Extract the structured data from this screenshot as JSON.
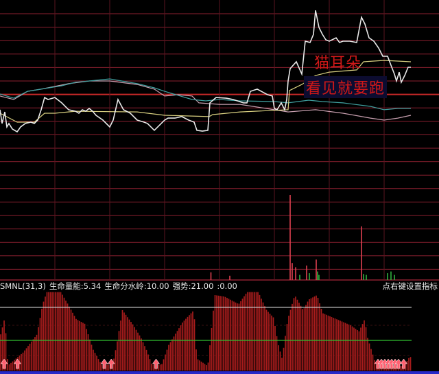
{
  "colors": {
    "background": "#000000",
    "grid": "#8e2030",
    "grid_base": "#c82828",
    "price": "#e8e8e8",
    "average": "#d8d080",
    "line_cyan": "#40a0a0",
    "line_pink": "#c8a0b0",
    "volume_up": "#e04050",
    "volume_down": "#30b040",
    "indicator_bar": "#a81c1c",
    "strong_line": "#d0d0d0",
    "watershed_line": "#30c030",
    "arrow": "#ff6070",
    "bottom_bar": "#2828c8"
  },
  "annotations": {
    "line1": "猫耳朵",
    "line2": "看见就要跑"
  },
  "indicator_header": {
    "name": "SMNL(31,3)",
    "energy": "生命量能:5.34",
    "watershed": "生命分水岭:10.00",
    "strong": "强势:21.00",
    "extra": ":0.00",
    "settings_hint": "点右键设置指标"
  },
  "chart_data": [
    {
      "type": "line",
      "panel": "intraday-price",
      "x_unit": "minute",
      "xlim": [
        0,
        240
      ],
      "y_unit": "percent change",
      "grid": true,
      "series": [
        {
          "role": "price",
          "points": [
            [
              0,
              -1.17
            ],
            [
              1.2,
              -2.19
            ],
            [
              2.8,
              -1.33
            ],
            [
              4,
              -2.45
            ],
            [
              5.2,
              -2.19
            ],
            [
              7.2,
              -2.6
            ],
            [
              10,
              -2.81
            ],
            [
              12,
              -2.45
            ],
            [
              14.8,
              -2.19
            ],
            [
              18,
              -2.09
            ],
            [
              20,
              -2.19
            ],
            [
              22,
              -1.94
            ],
            [
              24,
              -1.17
            ],
            [
              26,
              -0.26
            ],
            [
              28,
              -0.41
            ],
            [
              32,
              -0.26
            ],
            [
              36,
              -0.66
            ],
            [
              40,
              -1.17
            ],
            [
              44,
              -1.28
            ],
            [
              46,
              -1.43
            ],
            [
              48,
              -1.17
            ],
            [
              50,
              -1.28
            ],
            [
              52,
              -1.07
            ],
            [
              54,
              -1.28
            ],
            [
              56,
              -1.58
            ],
            [
              60,
              -1.94
            ],
            [
              64,
              -2.45
            ],
            [
              66,
              -1.94
            ],
            [
              68.8,
              -0.41
            ],
            [
              72,
              -1.17
            ],
            [
              76,
              -1.43
            ],
            [
              80,
              -1.94
            ],
            [
              84,
              -2.09
            ],
            [
              86,
              -2.19
            ],
            [
              90,
              -2.7
            ],
            [
              94,
              -2.19
            ],
            [
              96,
              -1.94
            ],
            [
              98,
              -1.79
            ],
            [
              102,
              -1.79
            ],
            [
              106,
              -1.68
            ],
            [
              110,
              -1.94
            ],
            [
              113.2,
              -2.09
            ],
            [
              114.8,
              -2.7
            ],
            [
              118,
              -2.76
            ],
            [
              121.2,
              -2.7
            ],
            [
              122.4,
              -0.66
            ],
            [
              126,
              -0.26
            ],
            [
              132,
              -0.31
            ],
            [
              136,
              -0.41
            ],
            [
              142,
              -0.66
            ],
            [
              144,
              -0.66
            ],
            [
              146,
              0.2
            ],
            [
              150,
              0.36
            ],
            [
              156,
              -0.05
            ],
            [
              158.8,
              -0.15
            ],
            [
              160,
              -1.07
            ],
            [
              161.6,
              -1.17
            ],
            [
              164,
              -0.66
            ],
            [
              166,
              -1.17
            ],
            [
              167.2,
              -0.41
            ],
            [
              168,
              0.97
            ],
            [
              169.2,
              1.89
            ],
            [
              172.8,
              2.4
            ],
            [
              176,
              1.48
            ],
            [
              178,
              3.93
            ],
            [
              180.8,
              3.83
            ],
            [
              182.8,
              4.44
            ],
            [
              184,
              6.22
            ],
            [
              186,
              4.95
            ],
            [
              188,
              4.44
            ],
            [
              190,
              4.03
            ],
            [
              192,
              3.93
            ],
            [
              196,
              4.18
            ],
            [
              198,
              3.83
            ],
            [
              200,
              3.93
            ],
            [
              204,
              3.93
            ],
            [
              208,
              3.83
            ],
            [
              210.8,
              5.71
            ],
            [
              212.8,
              5.2
            ],
            [
              215.2,
              4.18
            ],
            [
              218,
              3.93
            ],
            [
              220.8,
              3.42
            ],
            [
              223.2,
              2.81
            ],
            [
              226,
              2.81
            ],
            [
              228,
              2.14
            ],
            [
              230,
              1.48
            ],
            [
              231.2,
              0.97
            ],
            [
              232.8,
              1.63
            ],
            [
              234,
              0.87
            ],
            [
              236,
              1.38
            ],
            [
              238,
              1.99
            ],
            [
              239.6,
              1.99
            ]
          ]
        },
        {
          "role": "average",
          "points": [
            [
              0,
              -1.43
            ],
            [
              10,
              -2.09
            ],
            [
              20,
              -2.09
            ],
            [
              26,
              -1.43
            ],
            [
              32,
              -1.43
            ],
            [
              44,
              -1.28
            ],
            [
              80,
              -1.33
            ],
            [
              96,
              -1.58
            ],
            [
              122,
              -1.68
            ],
            [
              124,
              -1.53
            ],
            [
              140,
              -1.33
            ],
            [
              168,
              -1.17
            ],
            [
              168.8,
              0.26
            ],
            [
              176,
              0.71
            ],
            [
              184,
              1.38
            ],
            [
              192,
              1.63
            ],
            [
              208,
              1.79
            ],
            [
              212,
              2.4
            ],
            [
              224,
              2.5
            ],
            [
              239.6,
              2.4
            ]
          ]
        },
        {
          "role": "cyan",
          "points": [
            [
              0,
              0
            ],
            [
              8,
              -0.31
            ],
            [
              16,
              0.2
            ],
            [
              24,
              0.36
            ],
            [
              36,
              0.61
            ],
            [
              44,
              0.87
            ],
            [
              52,
              0.97
            ],
            [
              64,
              1.12
            ],
            [
              80,
              0.77
            ],
            [
              90,
              0.46
            ],
            [
              96,
              0.2
            ],
            [
              112,
              -0.41
            ],
            [
              120,
              -0.51
            ],
            [
              128,
              -0.41
            ],
            [
              140,
              -0.51
            ],
            [
              160,
              -0.56
            ],
            [
              168,
              -0.66
            ],
            [
              180,
              -0.46
            ],
            [
              188,
              -0.56
            ],
            [
              200,
              -0.66
            ],
            [
              216,
              -0.92
            ],
            [
              224,
              -1.17
            ],
            [
              232,
              -1.07
            ],
            [
              239.6,
              -1.07
            ]
          ]
        },
        {
          "role": "pink",
          "points": [
            [
              0,
              -0.15
            ],
            [
              8,
              -0.41
            ],
            [
              16,
              0.2
            ],
            [
              24,
              0.36
            ],
            [
              40,
              0.77
            ],
            [
              52,
              0.97
            ],
            [
              64,
              0.97
            ],
            [
              80,
              0.71
            ],
            [
              90,
              0.36
            ],
            [
              96,
              -0.15
            ],
            [
              104,
              -0.05
            ],
            [
              112,
              -0.15
            ],
            [
              116,
              -0.66
            ],
            [
              128,
              -0.77
            ],
            [
              140,
              -0.77
            ],
            [
              160,
              -1.17
            ],
            [
              168,
              -1.33
            ],
            [
              184,
              -1.17
            ],
            [
              200,
              -1.43
            ],
            [
              216,
              -1.79
            ],
            [
              224,
              -1.94
            ],
            [
              232,
              -1.79
            ],
            [
              239.6,
              -1.58
            ]
          ]
        }
      ]
    },
    {
      "type": "bar",
      "panel": "volume",
      "x_unit": "minute",
      "bars": [
        [
          123,
          9,
          "up"
        ],
        [
          134,
          5,
          "up"
        ],
        [
          169.2,
          100,
          "up"
        ],
        [
          170.4,
          20,
          "up"
        ],
        [
          172.4,
          15,
          "up"
        ],
        [
          174.8,
          6,
          "down"
        ],
        [
          178.8,
          17,
          "up"
        ],
        [
          180.4,
          8,
          "down"
        ],
        [
          184.4,
          24,
          "up"
        ],
        [
          185.2,
          10,
          "down"
        ],
        [
          186,
          6,
          "down"
        ],
        [
          210.8,
          63,
          "up"
        ],
        [
          212,
          7,
          "down"
        ],
        [
          213.6,
          6,
          "down"
        ],
        [
          226,
          8,
          "down"
        ],
        [
          228,
          10,
          "down"
        ],
        [
          230,
          6,
          "down"
        ]
      ]
    },
    {
      "type": "bar",
      "panel": "indicator",
      "name": "SMNL(31,3)",
      "x_unit": "minute",
      "ylim": [
        0,
        26
      ],
      "reference_lines": {
        "strong": 21,
        "watershed": 10
      },
      "points": [
        [
          0,
          12
        ],
        [
          2.4,
          17.5
        ],
        [
          4.1,
          3
        ],
        [
          4.9,
          2
        ],
        [
          13.1,
          6
        ],
        [
          21.2,
          12
        ],
        [
          24.5,
          22
        ],
        [
          26.9,
          26
        ],
        [
          35.1,
          26
        ],
        [
          39.2,
          22
        ],
        [
          44.1,
          17
        ],
        [
          49,
          15.5
        ],
        [
          53.9,
          7
        ],
        [
          58.8,
          2
        ],
        [
          65.3,
          2
        ],
        [
          67.8,
          9
        ],
        [
          71,
          20
        ],
        [
          76.8,
          15.5
        ],
        [
          81.7,
          11
        ],
        [
          84.9,
          7
        ],
        [
          88.2,
          2
        ],
        [
          93.9,
          2
        ],
        [
          98,
          8.5
        ],
        [
          106.1,
          16
        ],
        [
          112.7,
          20
        ],
        [
          114.3,
          4
        ],
        [
          120.8,
          1.5
        ],
        [
          124.9,
          25
        ],
        [
          130.6,
          24.5
        ],
        [
          138.8,
          22
        ],
        [
          143.7,
          26
        ],
        [
          150.2,
          26
        ],
        [
          155.1,
          20
        ],
        [
          159.2,
          17.5
        ],
        [
          161.7,
          9
        ],
        [
          164.1,
          4
        ],
        [
          167.4,
          17
        ],
        [
          171.5,
          25
        ],
        [
          176.4,
          20
        ],
        [
          179.6,
          23.5
        ],
        [
          184.5,
          25
        ],
        [
          187.8,
          19
        ],
        [
          196,
          17
        ],
        [
          204.1,
          15
        ],
        [
          209,
          13
        ],
        [
          212.3,
          17
        ],
        [
          213.9,
          11
        ],
        [
          218.8,
          2
        ],
        [
          235.2,
          1.5
        ],
        [
          238.4,
          4.5
        ]
      ],
      "buy_arrows": [
        2,
        9.8,
        60.4,
        64.5,
        90.6,
        220,
        222,
        224,
        226,
        228,
        230,
        232,
        235
      ]
    }
  ]
}
